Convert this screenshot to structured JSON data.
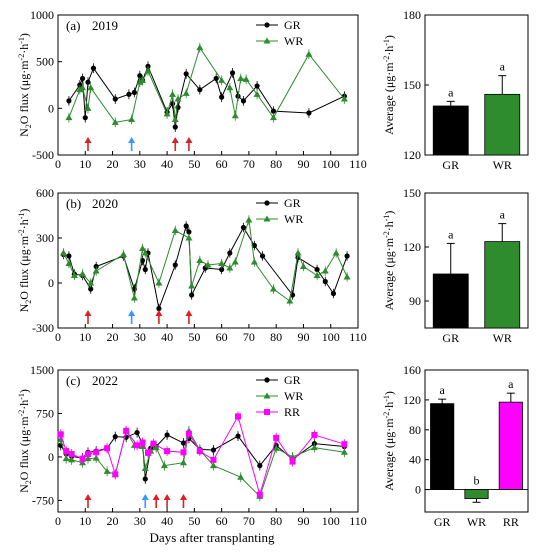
{
  "figure": {
    "xlabel": "Days after transplanting",
    "left_ylabel": "N₂O flux (μg·m⁻²·h⁻¹)",
    "right_ylabel": "Average (μg·m⁻²·h⁻¹)"
  },
  "colors": {
    "GR": "#000000",
    "WR": "#2e8b2e",
    "RR": "#ff00ff",
    "arrow_red": "#e02020",
    "arrow_blue": "#3399ff"
  },
  "chart_data": [
    {
      "type": "line",
      "panel_label": "(a)",
      "year": "2019",
      "ylim": [
        -500,
        1000
      ],
      "yticks": [
        -500,
        0,
        500,
        1000
      ],
      "xlim": [
        0,
        110
      ],
      "xticks": [
        0,
        10,
        20,
        30,
        40,
        50,
        60,
        70,
        80,
        90,
        100,
        110
      ],
      "legend": [
        "GR",
        "WR"
      ],
      "series": [
        {
          "name": "GR",
          "x": [
            4,
            8,
            9,
            10,
            11,
            13,
            21,
            26,
            28,
            30,
            31,
            33,
            40,
            42,
            43,
            44,
            47,
            52,
            58,
            60,
            64,
            66,
            68,
            73,
            79,
            92,
            105
          ],
          "y": [
            80,
            250,
            320,
            -100,
            280,
            430,
            100,
            150,
            170,
            350,
            300,
            450,
            -40,
            50,
            -200,
            10,
            370,
            200,
            320,
            120,
            380,
            130,
            80,
            240,
            -30,
            -50,
            130
          ]
        },
        {
          "name": "WR",
          "x": [
            4,
            8,
            9,
            11,
            12,
            21,
            27,
            30,
            31,
            33,
            40,
            42,
            43,
            44,
            47,
            52,
            60,
            63,
            65,
            67,
            69,
            73,
            79,
            92,
            105
          ],
          "y": [
            -100,
            200,
            220,
            0,
            220,
            -150,
            -120,
            280,
            300,
            400,
            -60,
            150,
            -120,
            100,
            160,
            650,
            300,
            220,
            -80,
            320,
            310,
            150,
            -100,
            580,
            100
          ]
        }
      ],
      "arrows": [
        {
          "x": 11,
          "color": "red"
        },
        {
          "x": 27,
          "color": "blue"
        },
        {
          "x": 43,
          "color": "red"
        },
        {
          "x": 48,
          "color": "red"
        }
      ]
    },
    {
      "type": "bar",
      "categories": [
        "GR",
        "WR"
      ],
      "values": [
        141,
        146
      ],
      "errors": [
        2,
        8
      ],
      "letters": [
        "a",
        "a"
      ],
      "ylim": [
        120,
        180
      ],
      "yticks": [
        120,
        150,
        180
      ]
    },
    {
      "type": "line",
      "panel_label": "(b)",
      "year": "2020",
      "ylim": [
        -300,
        600
      ],
      "yticks": [
        -300,
        0,
        300,
        600
      ],
      "xlim": [
        0,
        110
      ],
      "xticks": [
        0,
        10,
        20,
        30,
        40,
        50,
        60,
        70,
        80,
        90,
        100,
        110
      ],
      "legend": [
        "GR",
        "WR"
      ],
      "series": [
        {
          "name": "GR",
          "x": [
            2,
            4,
            6,
            9,
            12,
            14,
            24,
            28,
            31,
            32,
            33,
            37,
            43,
            47,
            48,
            49,
            54,
            60,
            63,
            68,
            72,
            75,
            86,
            88,
            95,
            98,
            101,
            106
          ],
          "y": [
            190,
            180,
            60,
            50,
            -40,
            110,
            180,
            -40,
            150,
            90,
            200,
            -170,
            120,
            380,
            340,
            -80,
            100,
            90,
            200,
            370,
            250,
            180,
            -80,
            170,
            90,
            10,
            -70,
            180
          ]
        },
        {
          "name": "WR",
          "x": [
            2,
            4,
            6,
            9,
            12,
            14,
            24,
            28,
            31,
            32,
            37,
            43,
            48,
            49,
            52,
            55,
            60,
            63,
            65,
            70,
            72,
            79,
            85,
            88,
            90,
            95,
            98,
            102,
            106
          ],
          "y": [
            200,
            130,
            50,
            60,
            0,
            80,
            190,
            -100,
            230,
            200,
            0,
            350,
            300,
            -20,
            150,
            120,
            130,
            100,
            140,
            420,
            140,
            -40,
            -120,
            200,
            110,
            50,
            80,
            200,
            40
          ]
        }
      ],
      "arrows": [
        {
          "x": 11,
          "color": "red"
        },
        {
          "x": 27,
          "color": "blue"
        },
        {
          "x": 37,
          "color": "red"
        },
        {
          "x": 48,
          "color": "red"
        }
      ]
    },
    {
      "type": "bar",
      "categories": [
        "GR",
        "WR"
      ],
      "values": [
        105,
        123
      ],
      "errors": [
        17,
        10
      ],
      "letters": [
        "a",
        "a"
      ],
      "ylim": [
        75,
        150
      ],
      "yticks": [
        90,
        120,
        150
      ]
    },
    {
      "type": "line",
      "panel_label": "(c)",
      "year": "2022",
      "ylim": [
        -950,
        1500
      ],
      "yticks": [
        -750,
        0,
        750,
        1500
      ],
      "xlim": [
        0,
        110
      ],
      "xticks": [
        0,
        10,
        20,
        30,
        40,
        50,
        60,
        70,
        80,
        90,
        100,
        110
      ],
      "legend": [
        "GR",
        "WR",
        "RR"
      ],
      "series": [
        {
          "name": "GR",
          "x": [
            1,
            3,
            5,
            9,
            11,
            14,
            18,
            21,
            25,
            29,
            31,
            32,
            34,
            36,
            40,
            46,
            48,
            52,
            57,
            66,
            74,
            80,
            86,
            94,
            105
          ],
          "y": [
            200,
            50,
            10,
            -20,
            80,
            100,
            150,
            350,
            340,
            420,
            230,
            -380,
            150,
            180,
            380,
            240,
            320,
            130,
            120,
            360,
            -150,
            200,
            -40,
            230,
            180
          ]
        },
        {
          "name": "WR",
          "x": [
            1,
            3,
            5,
            9,
            11,
            14,
            18,
            21,
            25,
            28,
            31,
            32,
            34,
            36,
            39,
            46,
            48,
            52,
            57,
            67,
            74,
            80,
            86,
            94,
            105
          ],
          "y": [
            300,
            -30,
            -50,
            -100,
            -30,
            -20,
            -250,
            -300,
            450,
            200,
            180,
            -200,
            100,
            160,
            -150,
            -100,
            450,
            120,
            -150,
            -350,
            -680,
            150,
            0,
            160,
            80
          ]
        },
        {
          "name": "RR",
          "x": [
            1,
            3,
            5,
            9,
            11,
            14,
            18,
            21,
            25,
            29,
            31,
            33,
            35,
            40,
            46,
            48,
            52,
            57,
            66,
            74,
            80,
            86,
            94,
            105
          ],
          "y": [
            390,
            100,
            50,
            -30,
            50,
            80,
            150,
            -300,
            450,
            200,
            250,
            70,
            230,
            100,
            80,
            400,
            100,
            -50,
            700,
            -650,
            330,
            -80,
            380,
            220
          ]
        }
      ],
      "arrows": [
        {
          "x": 11,
          "color": "red"
        },
        {
          "x": 32,
          "color": "blue"
        },
        {
          "x": 36,
          "color": "red"
        },
        {
          "x": 40,
          "color": "red"
        },
        {
          "x": 46,
          "color": "red"
        }
      ]
    },
    {
      "type": "bar",
      "categories": [
        "GR",
        "WR",
        "RR"
      ],
      "values": [
        115,
        -12,
        117
      ],
      "errors": [
        6,
        5,
        12
      ],
      "letters": [
        "a",
        "b",
        "a"
      ],
      "ylim": [
        -30,
        160
      ],
      "yticks": [
        0,
        40,
        80,
        120,
        160
      ]
    }
  ]
}
